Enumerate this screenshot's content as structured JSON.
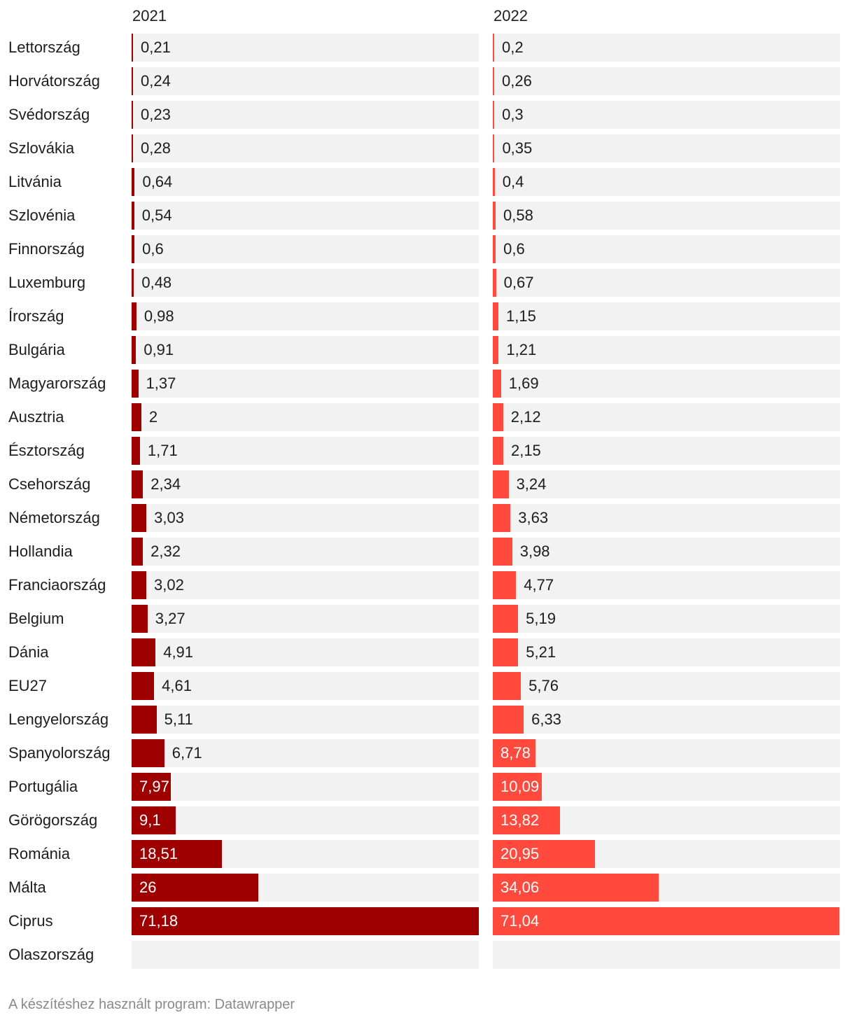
{
  "chart_data": {
    "type": "bar",
    "orientation": "horizontal",
    "xlim": [
      0,
      71.18
    ],
    "series": [
      {
        "name": "2021",
        "color": "#9e0000"
      },
      {
        "name": "2022",
        "color": "#ff4a3d"
      }
    ],
    "rows": [
      {
        "category": "Lettország",
        "v2021": 0.21,
        "l2021": "0,21",
        "v2022": 0.2,
        "l2022": "0,2"
      },
      {
        "category": "Horvátország",
        "v2021": 0.24,
        "l2021": "0,24",
        "v2022": 0.26,
        "l2022": "0,26"
      },
      {
        "category": "Svédország",
        "v2021": 0.23,
        "l2021": "0,23",
        "v2022": 0.3,
        "l2022": "0,3"
      },
      {
        "category": "Szlovákia",
        "v2021": 0.28,
        "l2021": "0,28",
        "v2022": 0.35,
        "l2022": "0,35"
      },
      {
        "category": "Litvánia",
        "v2021": 0.64,
        "l2021": "0,64",
        "v2022": 0.4,
        "l2022": "0,4"
      },
      {
        "category": "Szlovénia",
        "v2021": 0.54,
        "l2021": "0,54",
        "v2022": 0.58,
        "l2022": "0,58"
      },
      {
        "category": "Finnország",
        "v2021": 0.6,
        "l2021": "0,6",
        "v2022": 0.6,
        "l2022": "0,6"
      },
      {
        "category": "Luxemburg",
        "v2021": 0.48,
        "l2021": "0,48",
        "v2022": 0.67,
        "l2022": "0,67"
      },
      {
        "category": "Írország",
        "v2021": 0.98,
        "l2021": "0,98",
        "v2022": 1.15,
        "l2022": "1,15"
      },
      {
        "category": "Bulgária",
        "v2021": 0.91,
        "l2021": "0,91",
        "v2022": 1.21,
        "l2022": "1,21"
      },
      {
        "category": "Magyarország",
        "v2021": 1.37,
        "l2021": "1,37",
        "v2022": 1.69,
        "l2022": "1,69"
      },
      {
        "category": "Ausztria",
        "v2021": 2,
        "l2021": "2",
        "v2022": 2.12,
        "l2022": "2,12"
      },
      {
        "category": "Észtország",
        "v2021": 1.71,
        "l2021": "1,71",
        "v2022": 2.15,
        "l2022": "2,15"
      },
      {
        "category": "Csehország",
        "v2021": 2.34,
        "l2021": "2,34",
        "v2022": 3.24,
        "l2022": "3,24"
      },
      {
        "category": "Németország",
        "v2021": 3.03,
        "l2021": "3,03",
        "v2022": 3.63,
        "l2022": "3,63"
      },
      {
        "category": "Hollandia",
        "v2021": 2.32,
        "l2021": "2,32",
        "v2022": 3.98,
        "l2022": "3,98"
      },
      {
        "category": "Franciaország",
        "v2021": 3.02,
        "l2021": "3,02",
        "v2022": 4.77,
        "l2022": "4,77"
      },
      {
        "category": "Belgium",
        "v2021": 3.27,
        "l2021": "3,27",
        "v2022": 5.19,
        "l2022": "5,19"
      },
      {
        "category": "Dánia",
        "v2021": 4.91,
        "l2021": "4,91",
        "v2022": 5.21,
        "l2022": "5,21"
      },
      {
        "category": "EU27",
        "v2021": 4.61,
        "l2021": "4,61",
        "v2022": 5.76,
        "l2022": "5,76"
      },
      {
        "category": "Lengyelország",
        "v2021": 5.11,
        "l2021": "5,11",
        "v2022": 6.33,
        "l2022": "6,33"
      },
      {
        "category": "Spanyolország",
        "v2021": 6.71,
        "l2021": "6,71",
        "v2022": 8.78,
        "l2022": "8,78"
      },
      {
        "category": "Portugália",
        "v2021": 7.97,
        "l2021": "7,97",
        "v2022": 10.09,
        "l2022": "10,09"
      },
      {
        "category": "Görögország",
        "v2021": 9.1,
        "l2021": "9,1",
        "v2022": 13.82,
        "l2022": "13,82"
      },
      {
        "category": "Románia",
        "v2021": 18.51,
        "l2021": "18,51",
        "v2022": 20.95,
        "l2022": "20,95"
      },
      {
        "category": "Málta",
        "v2021": 26,
        "l2021": "26",
        "v2022": 34.06,
        "l2022": "34,06"
      },
      {
        "category": "Ciprus",
        "v2021": 71.18,
        "l2021": "71,18",
        "v2022": 71.04,
        "l2022": "71,04"
      },
      {
        "category": "Olaszország",
        "v2021": null,
        "l2021": null,
        "v2022": null,
        "l2022": null
      }
    ]
  },
  "footer": {
    "text": "A készítéshez használt program: Datawrapper"
  }
}
